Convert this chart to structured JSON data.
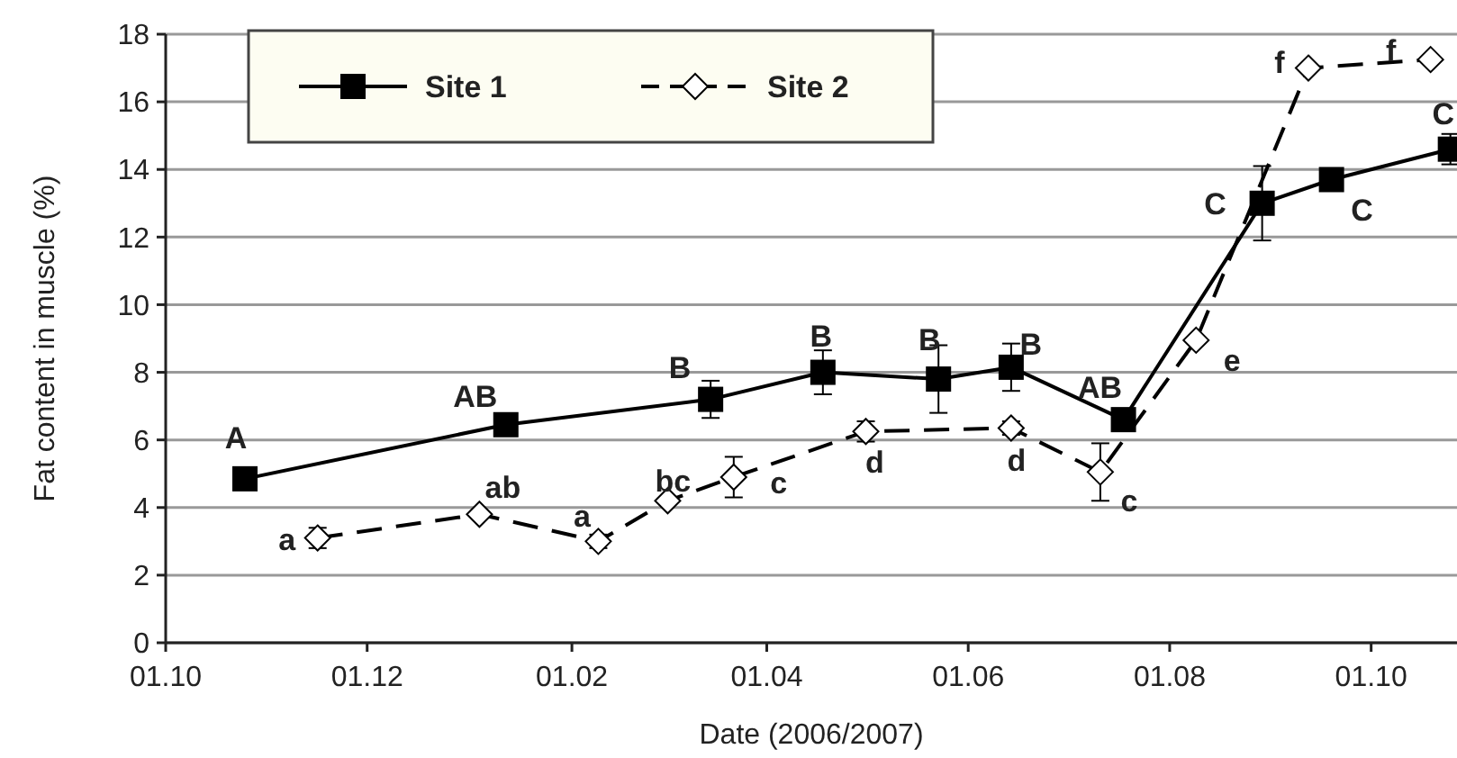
{
  "chart_data": {
    "type": "line",
    "xlabel": "Date (2006/2007)",
    "ylabel": "Fat content in muscle (%)",
    "xlim": [
      "2006-10-01",
      "2007-10-27"
    ],
    "xticks": [
      {
        "value": "2006-10-01",
        "label": "01.10"
      },
      {
        "value": "2006-12-01",
        "label": "01.12"
      },
      {
        "value": "2007-02-01",
        "label": "01.02"
      },
      {
        "value": "2007-04-01",
        "label": "01.04"
      },
      {
        "value": "2007-06-01",
        "label": "01.06"
      },
      {
        "value": "2007-08-01",
        "label": "01.08"
      },
      {
        "value": "2007-10-01",
        "label": "01.10"
      }
    ],
    "ylim": [
      0,
      18
    ],
    "yticks": [
      0,
      2,
      4,
      6,
      8,
      10,
      12,
      14,
      16,
      18
    ],
    "grid": "y",
    "legend": "top left",
    "series": [
      {
        "name": "Site 1",
        "color": "#000000",
        "marker": "square",
        "line_style": "solid",
        "x": [
          "2006-10-25",
          "2007-01-12",
          "2007-03-15",
          "2007-04-18",
          "2007-05-23",
          "2007-06-14",
          "2007-07-18",
          "2007-08-29",
          "2007-09-19",
          "2007-10-25"
        ],
        "values": [
          4.85,
          6.45,
          7.2,
          8.0,
          7.8,
          8.15,
          6.6,
          13.0,
          13.7,
          14.6
        ],
        "errors": [
          null,
          0.2,
          0.55,
          0.65,
          1.0,
          0.7,
          0.2,
          1.1,
          0.3,
          0.45
        ]
      },
      {
        "name": "Site 2",
        "color": "#000000",
        "marker": "diamond",
        "line_style": "dashed",
        "x": [
          "2006-11-16",
          "2007-01-04",
          "2007-02-09",
          "2007-03-02",
          "2007-03-22",
          "2007-05-01",
          "2007-06-14",
          "2007-07-11",
          "2007-08-09",
          "2007-09-12",
          "2007-10-19"
        ],
        "values": [
          3.1,
          3.8,
          3.0,
          4.2,
          4.9,
          6.25,
          6.35,
          5.05,
          8.95,
          17.0,
          17.25
        ],
        "errors": [
          0.3,
          null,
          0.2,
          null,
          0.6,
          0.3,
          0.2,
          0.85,
          null,
          null,
          null
        ]
      }
    ],
    "annotations": [
      {
        "text": "A",
        "x": "2006-10-25",
        "y": 4.85
      },
      {
        "text": "AB",
        "x": "2007-01-12",
        "y": 6.45
      },
      {
        "text": "B",
        "x": "2007-03-15",
        "y": 7.2
      },
      {
        "text": "B",
        "x": "2007-04-18",
        "y": 8.0
      },
      {
        "text": "B",
        "x": "2007-05-23",
        "y": 7.8
      },
      {
        "text": "B",
        "x": "2007-06-14",
        "y": 8.15
      },
      {
        "text": "AB",
        "x": "2007-07-18",
        "y": 6.6
      },
      {
        "text": "C",
        "x": "2007-08-29",
        "y": 13.0
      },
      {
        "text": "C",
        "x": "2007-09-19",
        "y": 13.7
      },
      {
        "text": "C",
        "x": "2007-10-25",
        "y": 14.6
      },
      {
        "text": "a",
        "x": "2006-11-16",
        "y": 3.1
      },
      {
        "text": "ab",
        "x": "2007-01-04",
        "y": 3.8
      },
      {
        "text": "a",
        "x": "2007-02-09",
        "y": 3.0
      },
      {
        "text": "bc",
        "x": "2007-03-02",
        "y": 4.2
      },
      {
        "text": "c",
        "x": "2007-03-22",
        "y": 4.9
      },
      {
        "text": "d",
        "x": "2007-05-01",
        "y": 6.25
      },
      {
        "text": "d",
        "x": "2007-06-14",
        "y": 6.35
      },
      {
        "text": "c",
        "x": "2007-07-11",
        "y": 5.05
      },
      {
        "text": "e",
        "x": "2007-08-09",
        "y": 8.95
      },
      {
        "text": "f",
        "x": "2007-09-12",
        "y": 17.0
      },
      {
        "text": "f",
        "x": "2007-10-19",
        "y": 17.25
      }
    ]
  }
}
